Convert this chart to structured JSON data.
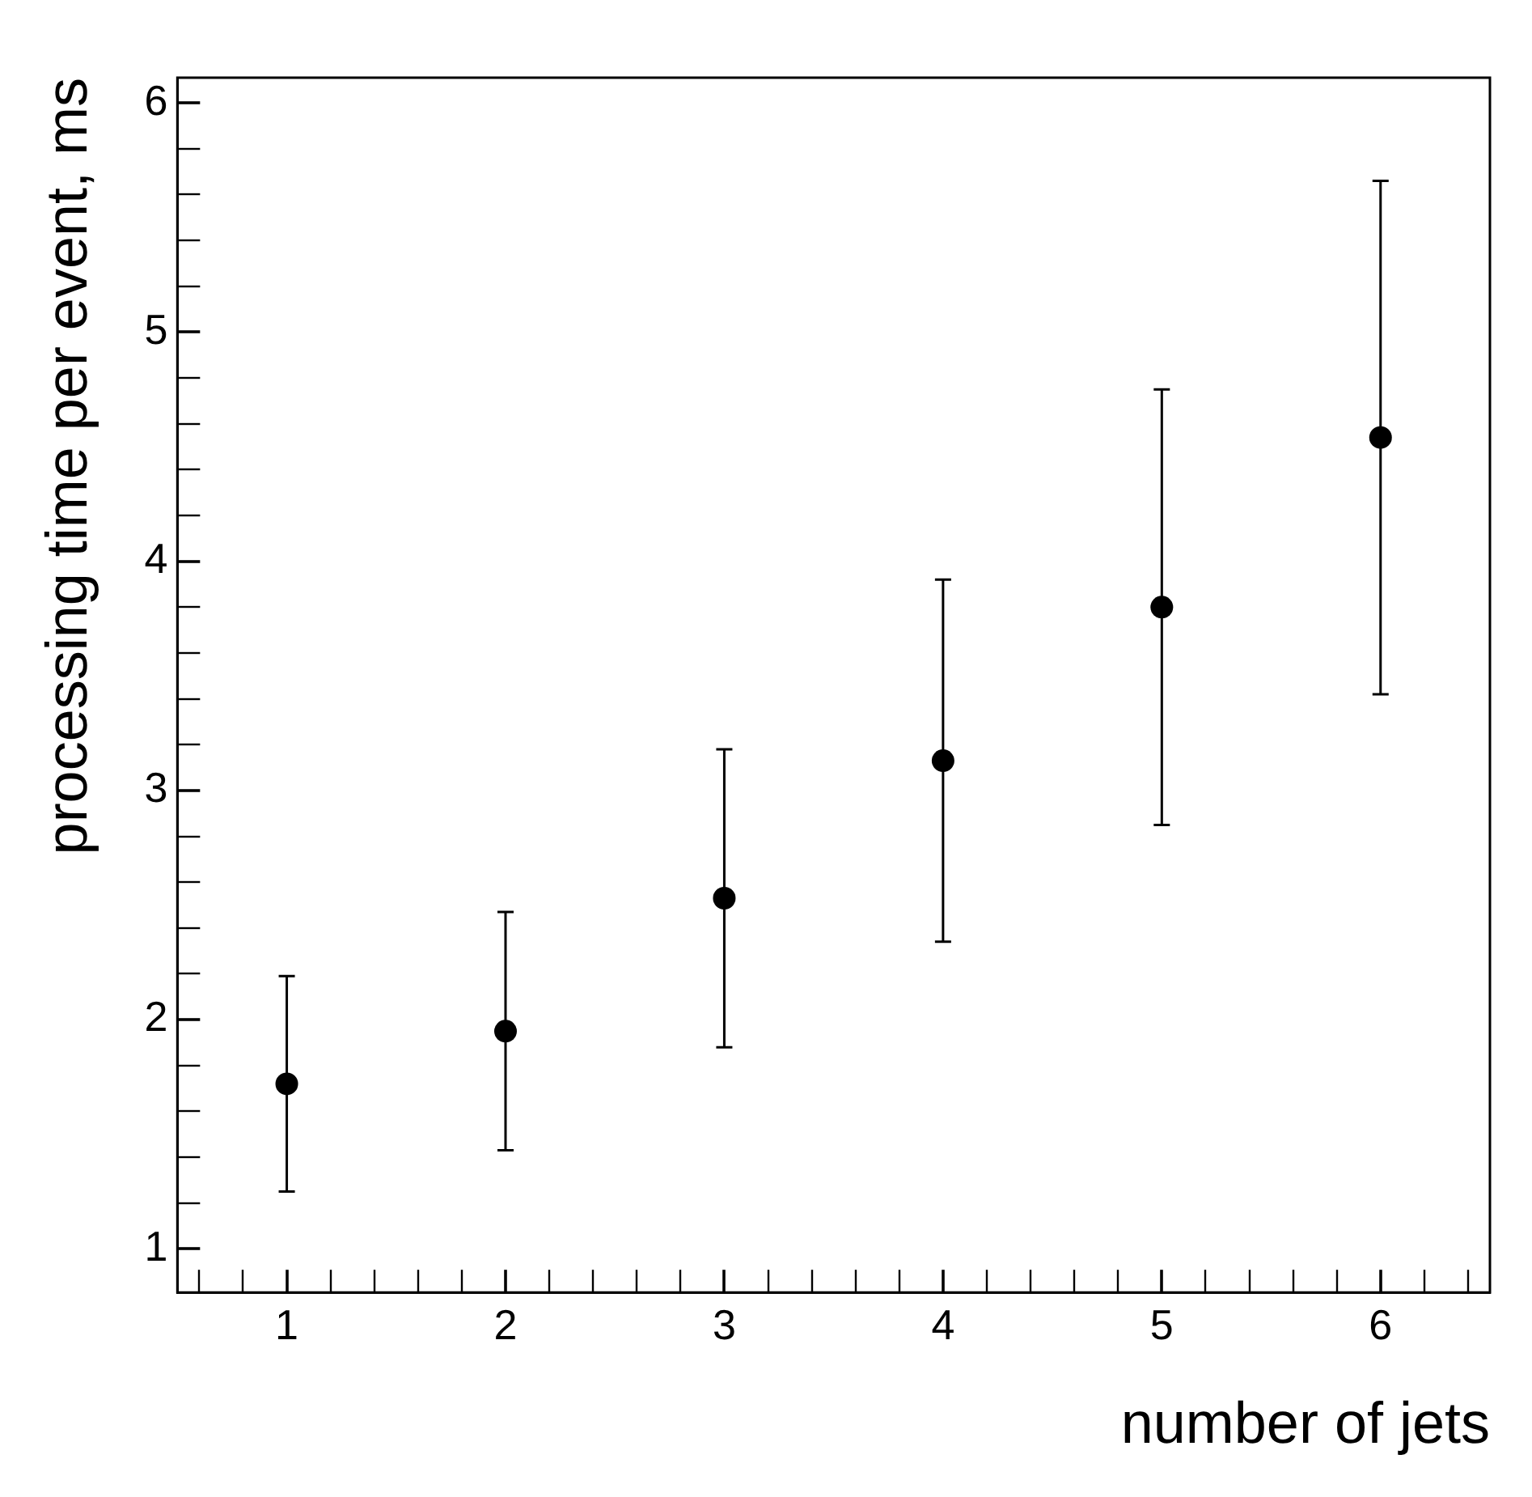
{
  "chart_data": {
    "type": "scatter",
    "xlabel": "number of jets",
    "ylabel": "processing time per event, ms",
    "x": [
      1,
      2,
      3,
      4,
      5,
      6
    ],
    "values": [
      1.72,
      1.95,
      2.53,
      3.13,
      3.8,
      4.54
    ],
    "errors": [
      0.47,
      0.52,
      0.65,
      0.79,
      0.95,
      1.12
    ],
    "color": "#000000",
    "marker": "circle",
    "legend": false,
    "xlim": [
      0.5,
      6.5
    ],
    "xticks": [
      {
        "value": 0.6,
        "label": null
      },
      {
        "value": 0.8,
        "label": null
      },
      1,
      {
        "value": 1.2,
        "label": null
      },
      {
        "value": 1.4,
        "label": null
      },
      {
        "value": 1.6,
        "label": null
      },
      {
        "value": 1.8,
        "label": null
      },
      2,
      {
        "value": 2.2,
        "label": null
      },
      {
        "value": 2.4,
        "label": null
      },
      {
        "value": 2.6,
        "label": null
      },
      {
        "value": 2.8,
        "label": null
      },
      3,
      {
        "value": 3.2,
        "label": null
      },
      {
        "value": 3.4,
        "label": null
      },
      {
        "value": 3.6,
        "label": null
      },
      {
        "value": 3.8,
        "label": null
      },
      4,
      {
        "value": 4.2,
        "label": null
      },
      {
        "value": 4.4,
        "label": null
      },
      {
        "value": 4.6,
        "label": null
      },
      {
        "value": 4.8,
        "label": null
      },
      5,
      {
        "value": 5.2,
        "label": null
      },
      {
        "value": 5.4,
        "label": null
      },
      {
        "value": 5.6,
        "label": null
      },
      {
        "value": 5.8,
        "label": null
      },
      6,
      {
        "value": 6.2,
        "label": null
      },
      {
        "value": 6.4,
        "label": null
      }
    ],
    "ylim": [
      0.81,
      6.11
    ],
    "yticks": [
      1,
      {
        "value": 1.2,
        "label": null
      },
      {
        "value": 1.4,
        "label": null
      },
      {
        "value": 1.6,
        "label": null
      },
      {
        "value": 1.8,
        "label": null
      },
      2,
      {
        "value": 2.2,
        "label": null
      },
      {
        "value": 2.4,
        "label": null
      },
      {
        "value": 2.6,
        "label": null
      },
      {
        "value": 2.8,
        "label": null
      },
      3,
      {
        "value": 3.2,
        "label": null
      },
      {
        "value": 3.4,
        "label": null
      },
      {
        "value": 3.6,
        "label": null
      },
      {
        "value": 3.8,
        "label": null
      },
      4,
      {
        "value": 4.2,
        "label": null
      },
      {
        "value": 4.4,
        "label": null
      },
      {
        "value": 4.6,
        "label": null
      },
      {
        "value": 4.8,
        "label": null
      },
      5,
      {
        "value": 5.2,
        "label": null
      },
      {
        "value": 5.4,
        "label": null
      },
      {
        "value": 5.6,
        "label": null
      },
      {
        "value": 5.8,
        "label": null
      },
      6
    ]
  }
}
